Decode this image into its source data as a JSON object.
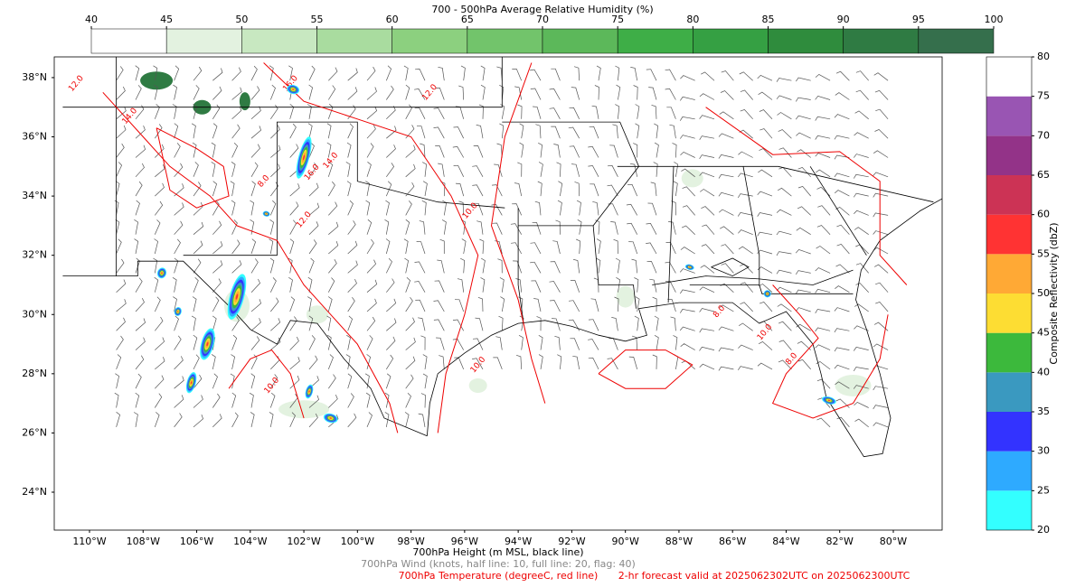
{
  "rh_colorbar": {
    "title": "700 - 500hPa Average Relative Humidity (%)",
    "ticks": [
      40,
      45,
      50,
      55,
      60,
      65,
      70,
      75,
      80,
      85,
      90,
      95,
      100
    ],
    "colors": [
      "#ffffff",
      "#e3f2e0",
      "#c8e8c1",
      "#a9dc9f",
      "#8cd07f",
      "#72c46b",
      "#5cb85a",
      "#3eae47",
      "#35a043",
      "#2f8c3d",
      "#2f7b43",
      "#356f4c"
    ]
  },
  "refl_colorbar": {
    "title": "Composite Reflectivity (dbZ)",
    "ticks": [
      20,
      25,
      30,
      35,
      40,
      45,
      50,
      55,
      60,
      65,
      70,
      75,
      80
    ],
    "colors": [
      "#33ffff",
      "#2eaaff",
      "#3333ff",
      "#3a99c0",
      "#3cb93c",
      "#fddd33",
      "#ffa935",
      "#ff3333",
      "#cc3355",
      "#933388",
      "#9955b3",
      "#ffffff"
    ]
  },
  "map": {
    "lon_ticks": [
      {
        "value": -110,
        "label": "110°W"
      },
      {
        "value": -108,
        "label": "108°W"
      },
      {
        "value": -106,
        "label": "106°W"
      },
      {
        "value": -104,
        "label": "104°W"
      },
      {
        "value": -102,
        "label": "102°W"
      },
      {
        "value": -100,
        "label": "100°W"
      },
      {
        "value": -98,
        "label": "98°W"
      },
      {
        "value": -96,
        "label": "96°W"
      },
      {
        "value": -94,
        "label": "94°W"
      },
      {
        "value": -92,
        "label": "92°W"
      },
      {
        "value": -90,
        "label": "90°W"
      },
      {
        "value": -88,
        "label": "88°W"
      },
      {
        "value": -86,
        "label": "86°W"
      },
      {
        "value": -84,
        "label": "84°W"
      },
      {
        "value": -82,
        "label": "82°W"
      },
      {
        "value": -80,
        "label": "80°W"
      }
    ],
    "lat_ticks": [
      {
        "value": 24,
        "label": "24°N"
      },
      {
        "value": 26,
        "label": "26°N"
      },
      {
        "value": 28,
        "label": "28°N"
      },
      {
        "value": 30,
        "label": "30°N"
      },
      {
        "value": 32,
        "label": "32°N"
      },
      {
        "value": 34,
        "label": "34°N"
      },
      {
        "value": 36,
        "label": "36°N"
      },
      {
        "value": 38,
        "label": "38°N"
      }
    ],
    "contour_labels": [
      "12.0",
      "14.0",
      "16.0",
      "14.0",
      "16.0",
      "12.0",
      "10.0",
      "8.0",
      "12.0",
      "10.0",
      "10.0",
      "8.0",
      "8.0",
      "10.0"
    ]
  },
  "footer": {
    "height": "700hPa Height (m MSL, black line)",
    "wind": "700hPa Wind (knots, half line: 10, full line: 20, flag: 40)",
    "temperature": "700hPa Temperature (degreeC, red line)",
    "valid": "2-hr forecast valid at 2025062302UTC on 2025062300UTC"
  }
}
